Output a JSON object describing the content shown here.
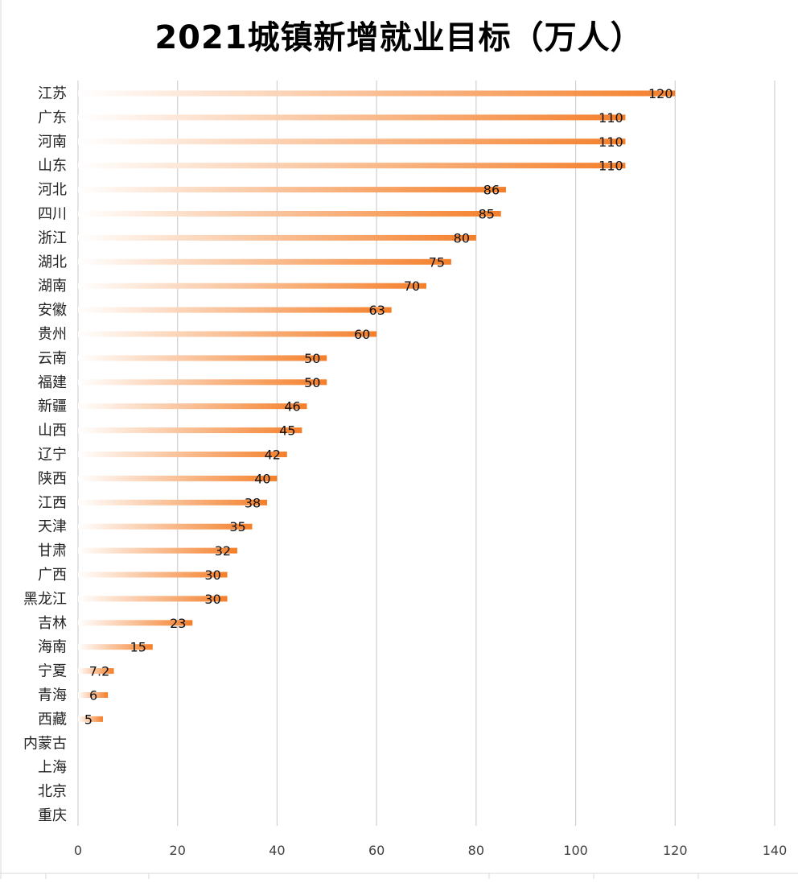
{
  "chart_data": {
    "type": "bar",
    "orientation": "horizontal",
    "title": "2021城镇新增就业目标（万人）",
    "xlabel": "",
    "ylabel": "",
    "xlim": [
      0,
      140
    ],
    "xticks": [
      0,
      20,
      40,
      60,
      80,
      100,
      120,
      140
    ],
    "grid": true,
    "legend": "none",
    "bar_color": "#f47f2a",
    "gradient_start_color": "#ffffff",
    "categories": [
      "江苏",
      "广东",
      "河南",
      "山东",
      "河北",
      "四川",
      "浙江",
      "湖北",
      "湖南",
      "安徽",
      "贵州",
      "云南",
      "福建",
      "新疆",
      "山西",
      "辽宁",
      "陕西",
      "江西",
      "天津",
      "甘肃",
      "广西",
      "黑龙江",
      "吉林",
      "海南",
      "宁夏",
      "青海",
      "西藏",
      "内蒙古",
      "上海",
      "北京",
      "重庆"
    ],
    "values": [
      120,
      110,
      110,
      110,
      86,
      85,
      80,
      75,
      70,
      63,
      60,
      50,
      50,
      46,
      45,
      42,
      40,
      38,
      35,
      32,
      30,
      30,
      23,
      15,
      7.2,
      6,
      5,
      null,
      null,
      null,
      null
    ],
    "data_labels": [
      "120",
      "110",
      "110",
      "110",
      "86",
      "85",
      "80",
      "75",
      "70",
      "63",
      "60",
      "50",
      "50",
      "46",
      "45",
      "42",
      "40",
      "38",
      "35",
      "32",
      "30",
      "30",
      "23",
      "15",
      "7.2",
      "6",
      "5",
      "",
      "",
      "",
      ""
    ]
  }
}
